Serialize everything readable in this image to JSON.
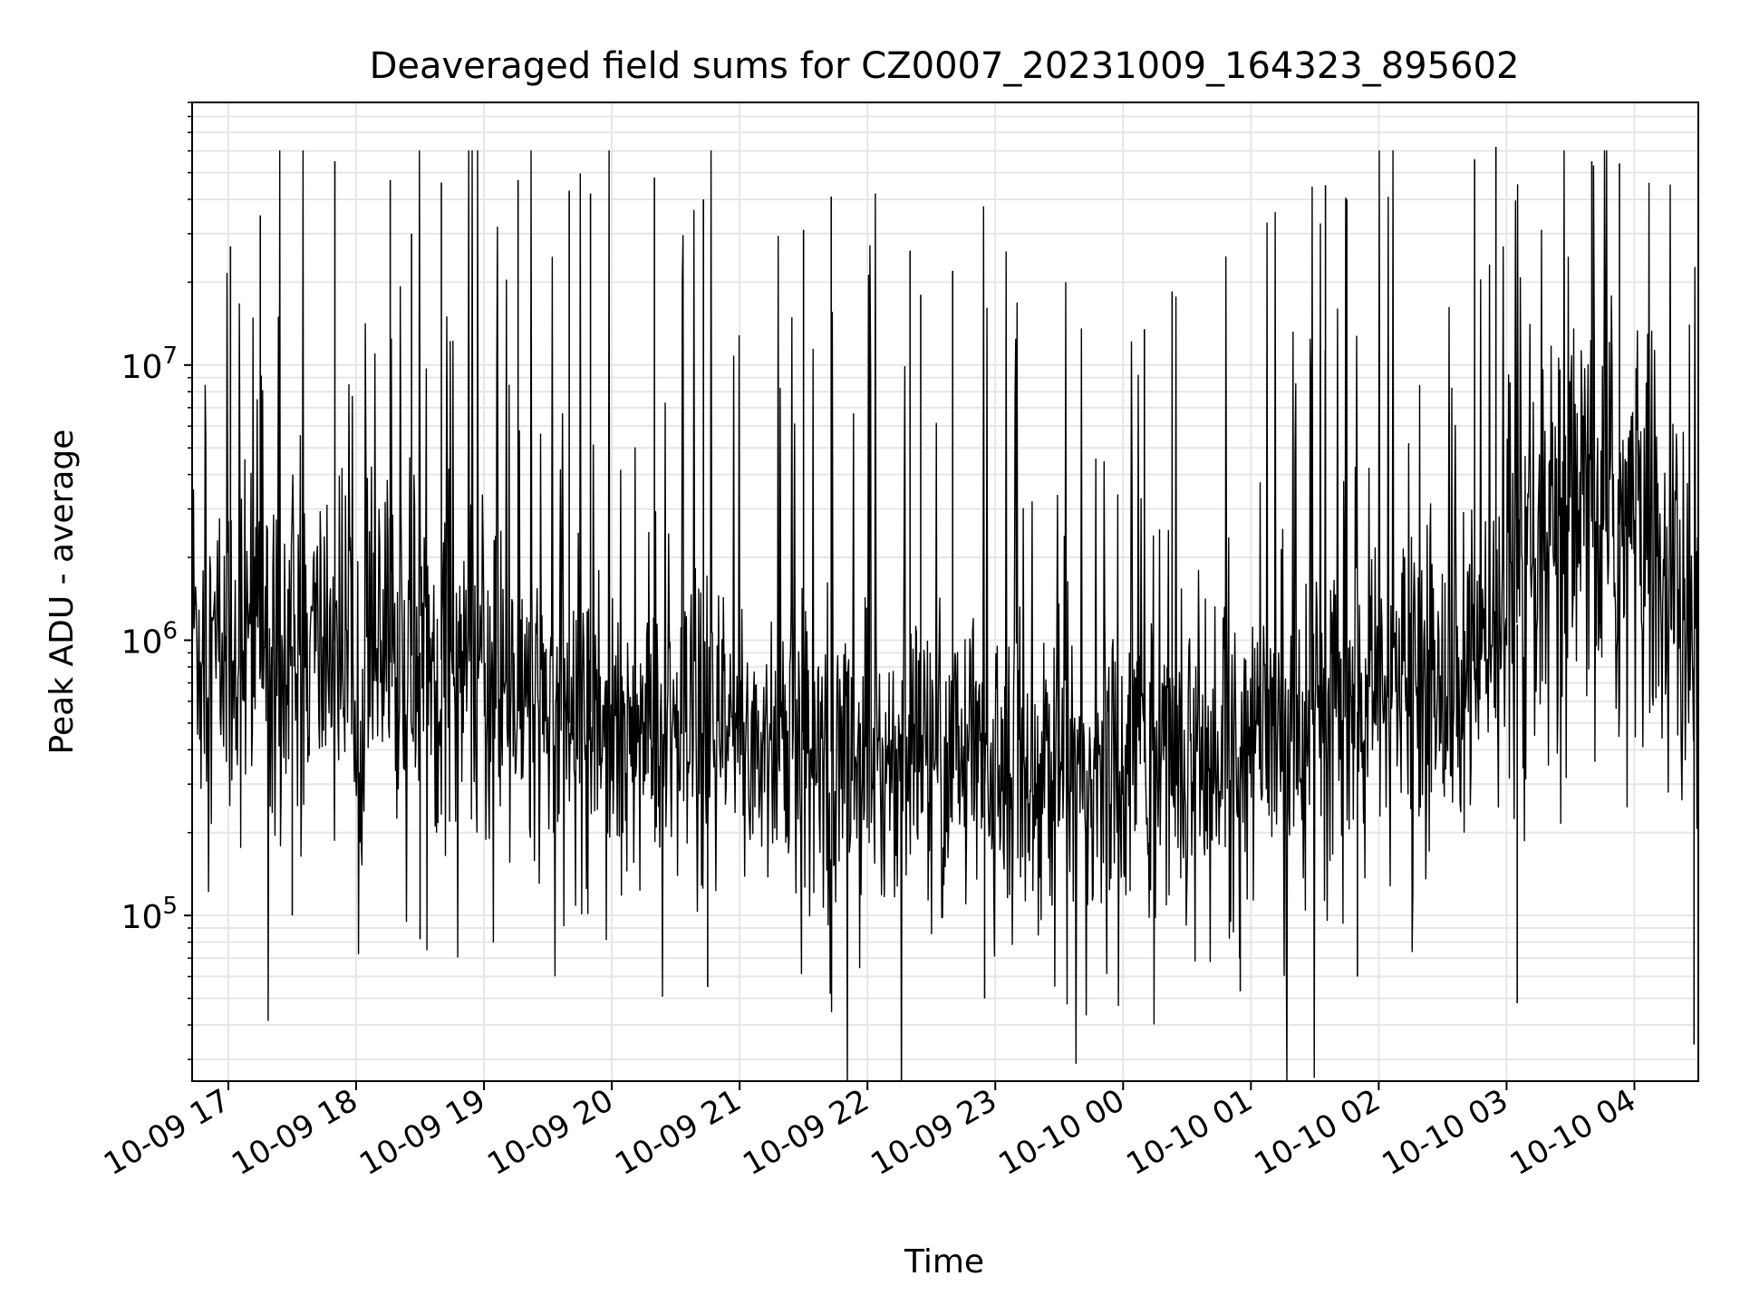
{
  "chart_data": {
    "type": "line",
    "title": "Deaveraged field sums for CZ0007_20231009_164323_895602",
    "xlabel": "Time",
    "ylabel": "Peak ADU - average",
    "x_range": [
      "2023-10-09 16:43",
      "2023-10-10 04:30"
    ],
    "ylim": [
      25000,
      90000000
    ],
    "yscale": "log",
    "grid": true,
    "line_color": "#000000",
    "x_ticks": [
      {
        "t": "2023-10-09 17:00",
        "label": "10-09 17"
      },
      {
        "t": "2023-10-09 18:00",
        "label": "10-09 18"
      },
      {
        "t": "2023-10-09 19:00",
        "label": "10-09 19"
      },
      {
        "t": "2023-10-09 20:00",
        "label": "10-09 20"
      },
      {
        "t": "2023-10-09 21:00",
        "label": "10-09 21"
      },
      {
        "t": "2023-10-09 22:00",
        "label": "10-09 22"
      },
      {
        "t": "2023-10-09 23:00",
        "label": "10-09 23"
      },
      {
        "t": "2023-10-10 00:00",
        "label": "10-10 00"
      },
      {
        "t": "2023-10-10 01:00",
        "label": "10-10 01"
      },
      {
        "t": "2023-10-10 02:00",
        "label": "10-10 02"
      },
      {
        "t": "2023-10-10 03:00",
        "label": "10-10 03"
      },
      {
        "t": "2023-10-10 04:00",
        "label": "10-10 04"
      }
    ],
    "y_ticks": [
      {
        "value": 100000,
        "base": "10",
        "exp": "5"
      },
      {
        "value": 1000000,
        "base": "10",
        "exp": "6"
      },
      {
        "value": 10000000,
        "base": "10",
        "exp": "7"
      }
    ],
    "series": [
      {
        "x": [
          "2023-10-09 16:43",
          "2023-10-09 16:50",
          "2023-10-09 17:00",
          "2023-10-09 17:10",
          "2023-10-09 17:20",
          "2023-10-09 17:30",
          "2023-10-09 17:40",
          "2023-10-09 17:50",
          "2023-10-09 18:00",
          "2023-10-09 18:10",
          "2023-10-09 18:20",
          "2023-10-09 18:30",
          "2023-10-09 18:40",
          "2023-10-09 18:50",
          "2023-10-09 19:00",
          "2023-10-09 19:10",
          "2023-10-09 19:20",
          "2023-10-09 19:30",
          "2023-10-09 19:40",
          "2023-10-09 19:50",
          "2023-10-09 20:00",
          "2023-10-09 20:10",
          "2023-10-09 20:20",
          "2023-10-09 20:30",
          "2023-10-09 20:40",
          "2023-10-09 20:50",
          "2023-10-09 21:00",
          "2023-10-09 21:10",
          "2023-10-09 21:20",
          "2023-10-09 21:30",
          "2023-10-09 21:40",
          "2023-10-09 21:50",
          "2023-10-09 22:00",
          "2023-10-09 22:10",
          "2023-10-09 22:20",
          "2023-10-09 22:30",
          "2023-10-09 22:40",
          "2023-10-09 22:50",
          "2023-10-09 23:00",
          "2023-10-09 23:10",
          "2023-10-09 23:20",
          "2023-10-09 23:30",
          "2023-10-09 23:40",
          "2023-10-09 23:50",
          "2023-10-10 00:00",
          "2023-10-10 00:10",
          "2023-10-10 00:20",
          "2023-10-10 00:30",
          "2023-10-10 00:40",
          "2023-10-10 00:50",
          "2023-10-10 01:00",
          "2023-10-10 01:10",
          "2023-10-10 01:20",
          "2023-10-10 01:30",
          "2023-10-10 01:40",
          "2023-10-10 01:50",
          "2023-10-10 02:00",
          "2023-10-10 02:10",
          "2023-10-10 02:20",
          "2023-10-10 02:30",
          "2023-10-10 02:40",
          "2023-10-10 02:50",
          "2023-10-10 03:00",
          "2023-10-10 03:10",
          "2023-10-10 03:20",
          "2023-10-10 03:30",
          "2023-10-10 03:40",
          "2023-10-10 03:50",
          "2023-10-10 04:00",
          "2023-10-10 04:10",
          "2023-10-10 04:20",
          "2023-10-10 04:30"
        ],
        "y": [
          1200000,
          850000,
          900000,
          1100000,
          1000000,
          950000,
          900000,
          1000000,
          850000,
          800000,
          850000,
          900000,
          850000,
          800000,
          700000,
          650000,
          600000,
          550000,
          500000,
          550000,
          520000,
          480000,
          430000,
          430000,
          400000,
          420000,
          430000,
          420000,
          420000,
          400000,
          400000,
          380000,
          380000,
          380000,
          370000,
          360000,
          360000,
          350000,
          340000,
          330000,
          330000,
          330000,
          330000,
          330000,
          340000,
          360000,
          360000,
          370000,
          390000,
          400000,
          420000,
          450000,
          500000,
          550000,
          550000,
          550000,
          600000,
          650000,
          650000,
          700000,
          750000,
          800000,
          1000000,
          1300000,
          1800000,
          2300000,
          2700000,
          2700000,
          2500000,
          2000000,
          1300000,
          700000
        ]
      }
    ],
    "spikes": [
      {
        "x": "2023-10-09 17:01",
        "y": 27000000
      },
      {
        "x": "2023-10-09 17:15",
        "y": 35000000
      },
      {
        "x": "2023-10-09 17:50",
        "y": 55000000
      },
      {
        "x": "2023-10-09 18:16",
        "y": 47000000
      },
      {
        "x": "2023-10-09 18:26",
        "y": 30000000
      },
      {
        "x": "2023-10-09 18:40",
        "y": 46000000
      },
      {
        "x": "2023-10-09 19:16",
        "y": 47000000
      },
      {
        "x": "2023-10-09 19:40",
        "y": 43000000
      },
      {
        "x": "2023-10-09 19:50",
        "y": 42000000
      },
      {
        "x": "2023-10-09 20:20",
        "y": 48000000
      },
      {
        "x": "2023-10-09 20:43",
        "y": 40000000
      },
      {
        "x": "2023-10-09 21:30",
        "y": 31000000
      },
      {
        "x": "2023-10-09 21:43",
        "y": 41000000
      },
      {
        "x": "2023-10-09 22:20",
        "y": 26000000
      },
      {
        "x": "2023-10-09 22:25",
        "y": 18000000
      },
      {
        "x": "2023-10-09 22:40",
        "y": 22000000
      },
      {
        "x": "2023-10-10 00:10",
        "y": 13500000
      },
      {
        "x": "2023-10-10 00:23",
        "y": 18500000
      },
      {
        "x": "2023-10-10 01:35",
        "y": 45000000
      },
      {
        "x": "2023-10-10 01:45",
        "y": 40000000
      },
      {
        "x": "2023-10-10 02:45",
        "y": 56000000
      },
      {
        "x": "2023-10-10 02:55",
        "y": 62000000
      },
      {
        "x": "2023-10-10 03:40",
        "y": 55000000
      },
      {
        "x": "2023-10-10 03:53",
        "y": 54000000
      }
    ],
    "dips": [
      {
        "x": "2023-10-09 17:30",
        "y": 100000
      },
      {
        "x": "2023-10-09 18:30",
        "y": 82000
      },
      {
        "x": "2023-10-09 20:45",
        "y": 55000
      },
      {
        "x": "2023-10-09 22:55",
        "y": 50000
      },
      {
        "x": "2023-10-10 00:55",
        "y": 53000
      },
      {
        "x": "2023-10-10 01:50",
        "y": 60000
      },
      {
        "x": "2023-10-10 03:05",
        "y": 48000
      },
      {
        "x": "2023-10-10 04:28",
        "y": 34000
      }
    ]
  }
}
